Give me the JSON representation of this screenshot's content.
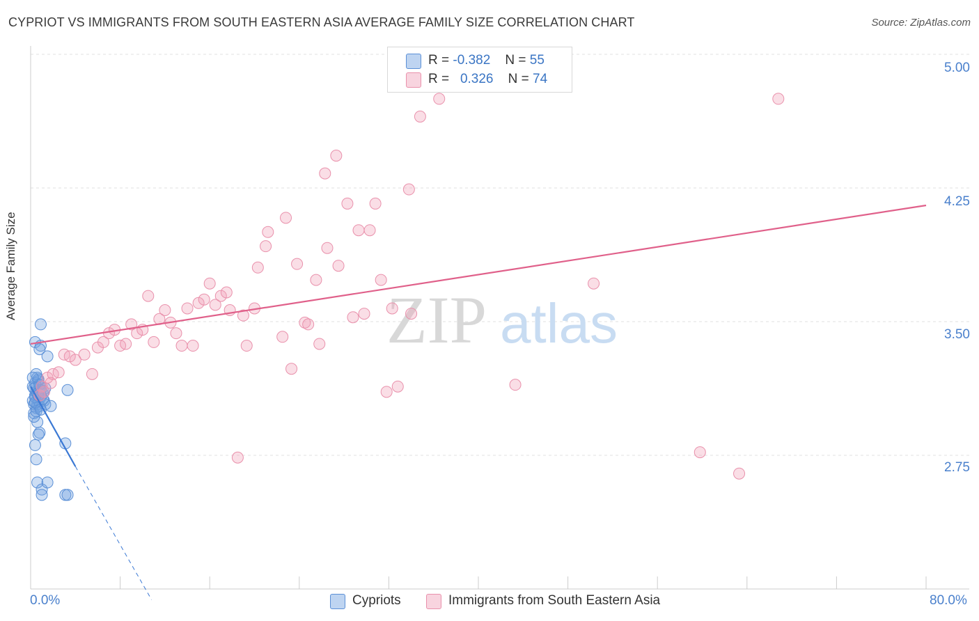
{
  "chart_data": {
    "type": "scatter",
    "title": "CYPRIOT VS IMMIGRANTS FROM SOUTH EASTERN ASIA AVERAGE FAMILY SIZE CORRELATION CHART",
    "source": "Source: ZipAtlas.com",
    "watermark": {
      "zip": "ZIP",
      "atlas": "atlas"
    },
    "ylabel": "Average Family Size",
    "xlim": [
      0,
      80
    ],
    "ylim": [
      2.05,
      5.05
    ],
    "x_tick_labels": {
      "min": "0.0%",
      "max": "80.0%"
    },
    "y_ticks": [
      {
        "value": 5.0,
        "label": "5.00"
      },
      {
        "value": 4.25,
        "label": "4.25"
      },
      {
        "value": 3.5,
        "label": "3.50"
      },
      {
        "value": 2.75,
        "label": "2.75"
      }
    ],
    "legend": [
      {
        "r_label": "R =",
        "r": "-0.382",
        "n_label": "N =",
        "n": "55",
        "color": "#6fa0e0"
      },
      {
        "r_label": "R =",
        "r": "0.326",
        "n_label": "N =",
        "n": "74",
        "color": "#f0a0b8"
      }
    ],
    "series": [
      {
        "name": "Cypriots",
        "color": "#6fa0e0",
        "line_color": "#3a78d4",
        "trend": {
          "x0": 0.0,
          "y0": 3.2,
          "x1": 4.0,
          "y1": 2.75,
          "dash_to_x": 10.8,
          "dash_to_y": 2.0
        },
        "points": [
          [
            0.3,
            3.1
          ],
          [
            0.4,
            3.15
          ],
          [
            0.5,
            3.2
          ],
          [
            0.6,
            3.25
          ],
          [
            0.3,
            3.05
          ],
          [
            0.7,
            3.12
          ],
          [
            0.8,
            3.18
          ],
          [
            0.5,
            3.08
          ],
          [
            0.9,
            3.14
          ],
          [
            1.0,
            3.2
          ],
          [
            0.4,
            3.22
          ],
          [
            0.6,
            3.1
          ],
          [
            1.1,
            3.16
          ],
          [
            0.2,
            3.12
          ],
          [
            0.5,
            3.17
          ],
          [
            0.8,
            3.09
          ],
          [
            1.2,
            3.12
          ],
          [
            0.3,
            3.19
          ],
          [
            0.7,
            3.23
          ],
          [
            0.4,
            3.14
          ],
          [
            0.9,
            3.18
          ],
          [
            1.3,
            3.1
          ],
          [
            0.6,
            3.0
          ],
          [
            0.5,
            3.27
          ],
          [
            0.7,
            3.24
          ],
          [
            0.4,
            3.45
          ],
          [
            0.9,
            3.43
          ],
          [
            0.8,
            3.41
          ],
          [
            1.5,
            3.37
          ],
          [
            0.9,
            3.55
          ],
          [
            0.8,
            2.94
          ],
          [
            0.7,
            2.93
          ],
          [
            0.4,
            2.87
          ],
          [
            0.5,
            2.79
          ],
          [
            0.6,
            2.66
          ],
          [
            1.0,
            2.62
          ],
          [
            1.0,
            2.59
          ],
          [
            1.5,
            2.66
          ],
          [
            3.1,
            2.59
          ],
          [
            3.3,
            2.59
          ],
          [
            3.1,
            2.88
          ],
          [
            3.3,
            3.18
          ],
          [
            1.8,
            3.09
          ],
          [
            0.3,
            3.03
          ],
          [
            0.5,
            3.06
          ],
          [
            1.1,
            3.13
          ],
          [
            0.2,
            3.2
          ],
          [
            0.6,
            3.16
          ],
          [
            1.3,
            3.19
          ],
          [
            0.8,
            3.21
          ],
          [
            0.4,
            3.11
          ],
          [
            0.9,
            3.07
          ],
          [
            0.2,
            3.25
          ],
          [
            0.7,
            3.15
          ],
          [
            1.2,
            3.17
          ]
        ]
      },
      {
        "name": "Immigrants from South Eastern Asia",
        "color": "#f0a0b8",
        "line_color": "#e0608a",
        "trend": {
          "x0": 0.0,
          "y0": 3.44,
          "x1": 80.0,
          "y1": 4.22
        },
        "points": [
          [
            0.8,
            3.15
          ],
          [
            1.0,
            3.2
          ],
          [
            1.2,
            3.17
          ],
          [
            1.5,
            3.25
          ],
          [
            2.0,
            3.27
          ],
          [
            1.8,
            3.22
          ],
          [
            2.5,
            3.28
          ],
          [
            3.0,
            3.38
          ],
          [
            3.5,
            3.37
          ],
          [
            4.0,
            3.35
          ],
          [
            4.8,
            3.38
          ],
          [
            5.5,
            3.27
          ],
          [
            6.0,
            3.42
          ],
          [
            6.5,
            3.45
          ],
          [
            7.0,
            3.5
          ],
          [
            7.5,
            3.52
          ],
          [
            8.0,
            3.43
          ],
          [
            8.5,
            3.44
          ],
          [
            9.0,
            3.55
          ],
          [
            9.5,
            3.5
          ],
          [
            10.0,
            3.52
          ],
          [
            10.5,
            3.71
          ],
          [
            11.0,
            3.45
          ],
          [
            11.5,
            3.58
          ],
          [
            12.0,
            3.63
          ],
          [
            12.5,
            3.56
          ],
          [
            13.0,
            3.5
          ],
          [
            13.5,
            3.43
          ],
          [
            14.0,
            3.64
          ],
          [
            14.5,
            3.43
          ],
          [
            15.0,
            3.67
          ],
          [
            15.5,
            3.69
          ],
          [
            16.0,
            3.78
          ],
          [
            16.5,
            3.66
          ],
          [
            17.0,
            3.71
          ],
          [
            17.5,
            3.73
          ],
          [
            17.8,
            3.63
          ],
          [
            18.5,
            2.8
          ],
          [
            19.0,
            3.6
          ],
          [
            19.3,
            3.43
          ],
          [
            20.0,
            3.64
          ],
          [
            20.3,
            3.87
          ],
          [
            21.0,
            3.99
          ],
          [
            21.2,
            4.07
          ],
          [
            22.5,
            3.48
          ],
          [
            22.8,
            4.15
          ],
          [
            23.3,
            3.3
          ],
          [
            23.8,
            3.89
          ],
          [
            24.5,
            3.56
          ],
          [
            24.8,
            3.55
          ],
          [
            25.5,
            3.8
          ],
          [
            25.8,
            3.44
          ],
          [
            26.3,
            4.4
          ],
          [
            26.5,
            3.98
          ],
          [
            27.3,
            4.5
          ],
          [
            27.5,
            3.88
          ],
          [
            28.3,
            4.23
          ],
          [
            28.8,
            3.59
          ],
          [
            29.3,
            4.08
          ],
          [
            29.8,
            3.61
          ],
          [
            30.3,
            4.08
          ],
          [
            30.8,
            4.23
          ],
          [
            31.3,
            3.8
          ],
          [
            31.8,
            3.17
          ],
          [
            32.3,
            3.64
          ],
          [
            32.8,
            3.2
          ],
          [
            33.8,
            4.31
          ],
          [
            34.0,
            3.61
          ],
          [
            34.8,
            4.72
          ],
          [
            36.5,
            4.82
          ],
          [
            43.3,
            3.21
          ],
          [
            50.3,
            3.78
          ],
          [
            59.8,
            2.83
          ],
          [
            63.3,
            2.71
          ],
          [
            66.8,
            4.82
          ]
        ]
      }
    ]
  }
}
